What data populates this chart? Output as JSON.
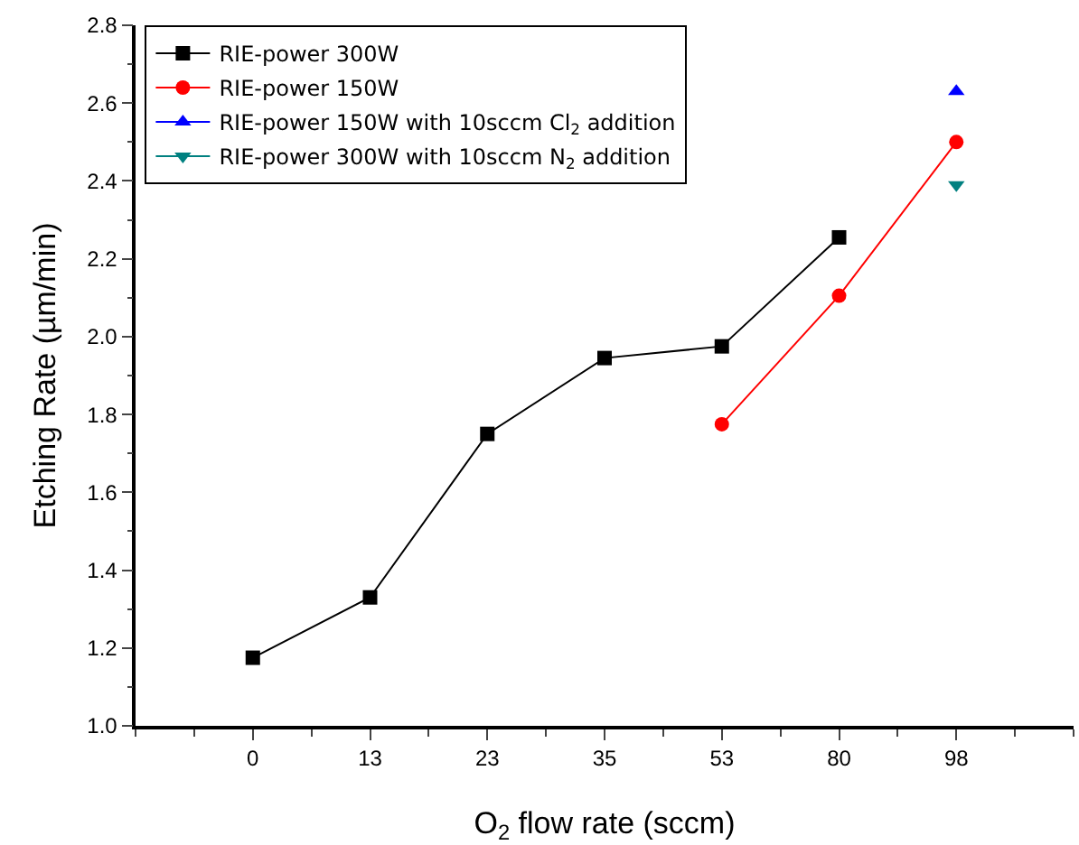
{
  "chart_data": {
    "type": "line",
    "xlabel": "O$_{2}$ flow rate (sccm)",
    "ylabel": "Etching Rate (µm/min)",
    "categories": [
      "0",
      "13",
      "23",
      "35",
      "53",
      "80",
      "98"
    ],
    "series": [
      {
        "name": "RIE-power 300W",
        "color": "#000000",
        "marker": "square",
        "values": [
          1.175,
          1.33,
          1.75,
          1.945,
          1.975,
          2.255,
          null
        ]
      },
      {
        "name": "RIE-power 150W",
        "color": "#ff0000",
        "marker": "circle",
        "values": [
          null,
          null,
          null,
          null,
          1.775,
          2.105,
          2.5
        ]
      },
      {
        "name": "RIE-power 150W with 10sccm Cl$_{2}$ addition",
        "color": "#0000ff",
        "marker": "triangle",
        "values": [
          null,
          null,
          null,
          null,
          null,
          null,
          2.63
        ]
      },
      {
        "name": "RIE-power 300W with 10sccm N$_{2}$ addition",
        "color": "#008080",
        "marker": "triangle-down",
        "values": [
          null,
          null,
          null,
          null,
          null,
          null,
          2.39
        ]
      }
    ],
    "ylim": [
      1.0,
      2.8
    ],
    "yticks": [
      {
        "value": 1.0,
        "label": "1.0"
      },
      {
        "value": 1.2,
        "label": "1.2"
      },
      {
        "value": 1.4,
        "label": "1.4"
      },
      {
        "value": 1.6,
        "label": "1.6"
      },
      {
        "value": 1.8,
        "label": "1.8"
      },
      {
        "value": 2.0,
        "label": "2.0"
      },
      {
        "value": 2.2,
        "label": "2.2"
      },
      {
        "value": 2.4,
        "label": "2.4"
      },
      {
        "value": 2.6,
        "label": "2.6"
      },
      {
        "value": 2.8,
        "label": "2.8"
      }
    ],
    "grid": false,
    "legend": "top left",
    "line_style": "solid"
  }
}
